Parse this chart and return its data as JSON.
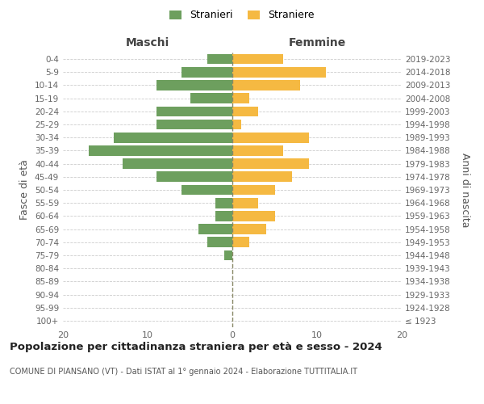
{
  "age_groups": [
    "100+",
    "95-99",
    "90-94",
    "85-89",
    "80-84",
    "75-79",
    "70-74",
    "65-69",
    "60-64",
    "55-59",
    "50-54",
    "45-49",
    "40-44",
    "35-39",
    "30-34",
    "25-29",
    "20-24",
    "15-19",
    "10-14",
    "5-9",
    "0-4"
  ],
  "birth_years": [
    "≤ 1923",
    "1924-1928",
    "1929-1933",
    "1934-1938",
    "1939-1943",
    "1944-1948",
    "1949-1953",
    "1954-1958",
    "1959-1963",
    "1964-1968",
    "1969-1973",
    "1974-1978",
    "1979-1983",
    "1984-1988",
    "1989-1993",
    "1994-1998",
    "1999-2003",
    "2004-2008",
    "2009-2013",
    "2014-2018",
    "2019-2023"
  ],
  "males": [
    0,
    0,
    0,
    0,
    0,
    1,
    3,
    4,
    2,
    2,
    6,
    9,
    13,
    17,
    14,
    9,
    9,
    5,
    9,
    6,
    3
  ],
  "females": [
    0,
    0,
    0,
    0,
    0,
    0,
    2,
    4,
    5,
    3,
    5,
    7,
    9,
    6,
    9,
    1,
    3,
    2,
    8,
    11,
    6
  ],
  "male_color": "#6d9f5e",
  "female_color": "#f5b942",
  "male_label": "Stranieri",
  "female_label": "Straniere",
  "xlim": 20,
  "title": "Popolazione per cittadinanza straniera per età e sesso - 2024",
  "subtitle": "COMUNE DI PIANSANO (VT) - Dati ISTAT al 1° gennaio 2024 - Elaborazione TUTTITALIA.IT",
  "xlabel_left": "Maschi",
  "xlabel_right": "Femmine",
  "ylabel_left": "Fasce di età",
  "ylabel_right": "Anni di nascita",
  "bg_color": "#ffffff",
  "grid_color": "#cccccc"
}
